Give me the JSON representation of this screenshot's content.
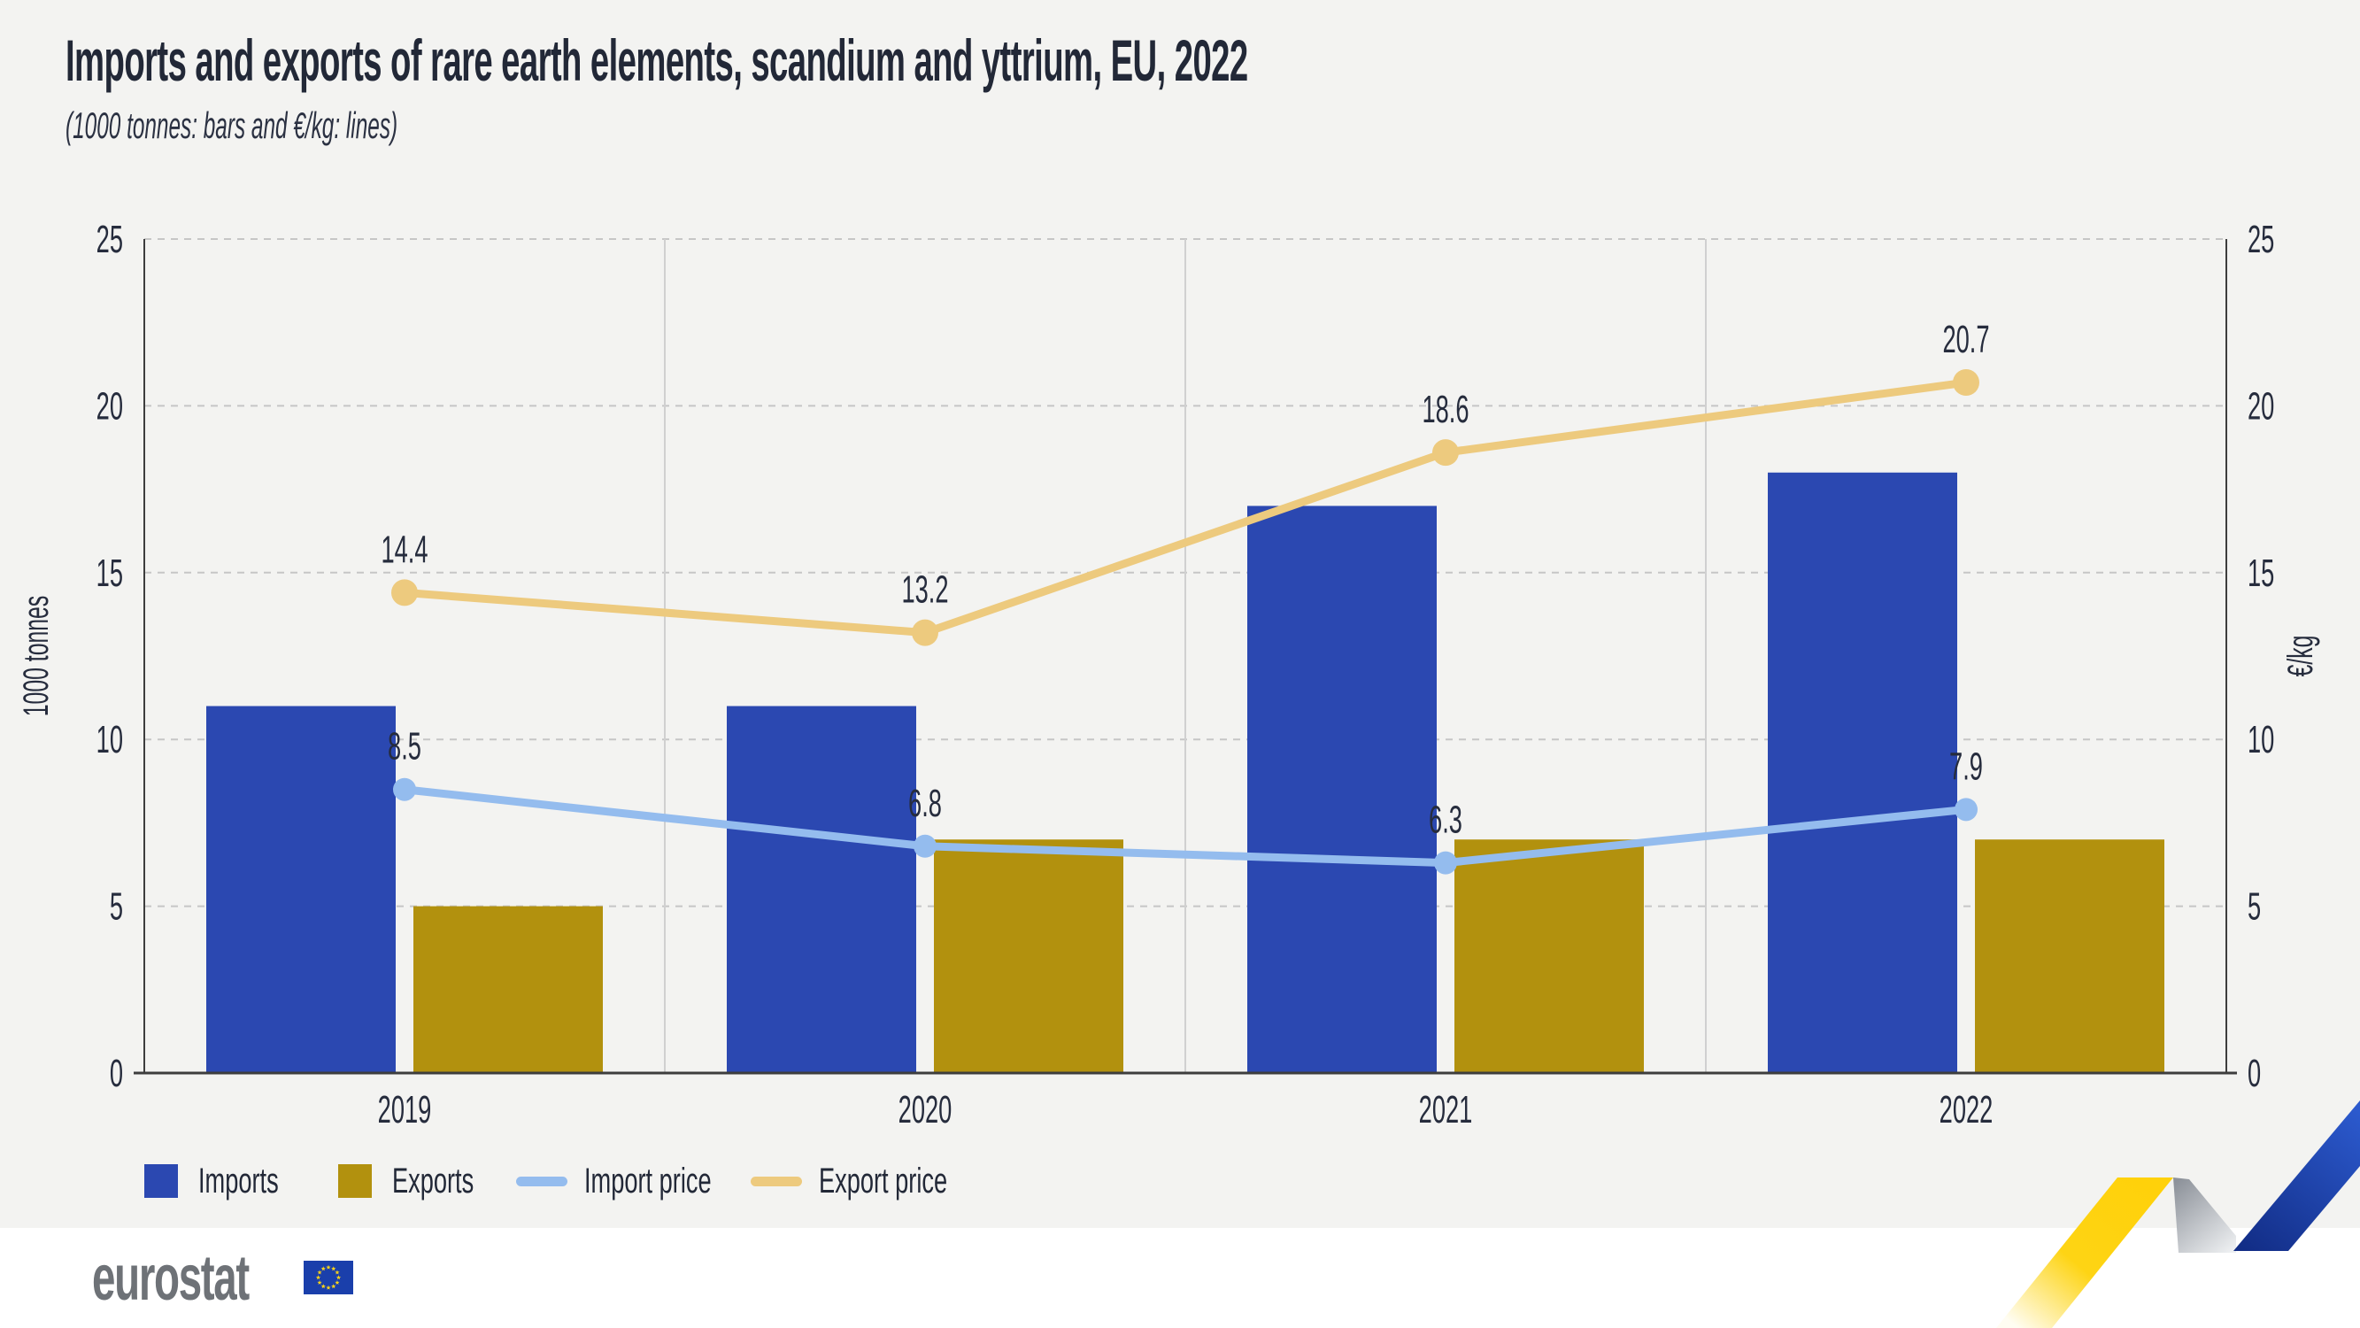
{
  "header": {
    "title": "Imports and exports of rare earth elements, scandium and yttrium, EU, 2022",
    "subtitle": "(1000 tonnes: bars and €/kg: lines)"
  },
  "chart_data": {
    "type": "bar+line",
    "categories": [
      "2019",
      "2020",
      "2021",
      "2022"
    ],
    "bar_series": [
      {
        "name": "Imports",
        "color": "#2b48b1",
        "values": [
          11,
          11,
          17,
          18
        ]
      },
      {
        "name": "Exports",
        "color": "#b2910e",
        "values": [
          5,
          7,
          7,
          7
        ]
      }
    ],
    "line_series": [
      {
        "name": "Import price",
        "color": "#94bcee",
        "values": [
          8.5,
          6.8,
          6.3,
          7.9
        ]
      },
      {
        "name": "Export price",
        "color": "#edca7e",
        "values": [
          14.4,
          13.2,
          18.6,
          20.7
        ]
      }
    ],
    "y_left": {
      "label": "1000 tonnes",
      "min": 0,
      "max": 25,
      "step": 5
    },
    "y_right": {
      "label": "€/kg",
      "min": 0,
      "max": 25,
      "step": 5
    },
    "grid": true,
    "legend_position": "bottom"
  },
  "footer": {
    "logo_text": "eurostat"
  },
  "colors": {
    "background": "#f3f3f1",
    "gridline": "#c6c6c6",
    "separator": "#d0d0d0",
    "axis": "#3d3d3d",
    "text": "#262c3d",
    "logo_gray": "#6e7277",
    "flag_blue": "#1a3fab",
    "star_yellow": "#ffd617"
  }
}
